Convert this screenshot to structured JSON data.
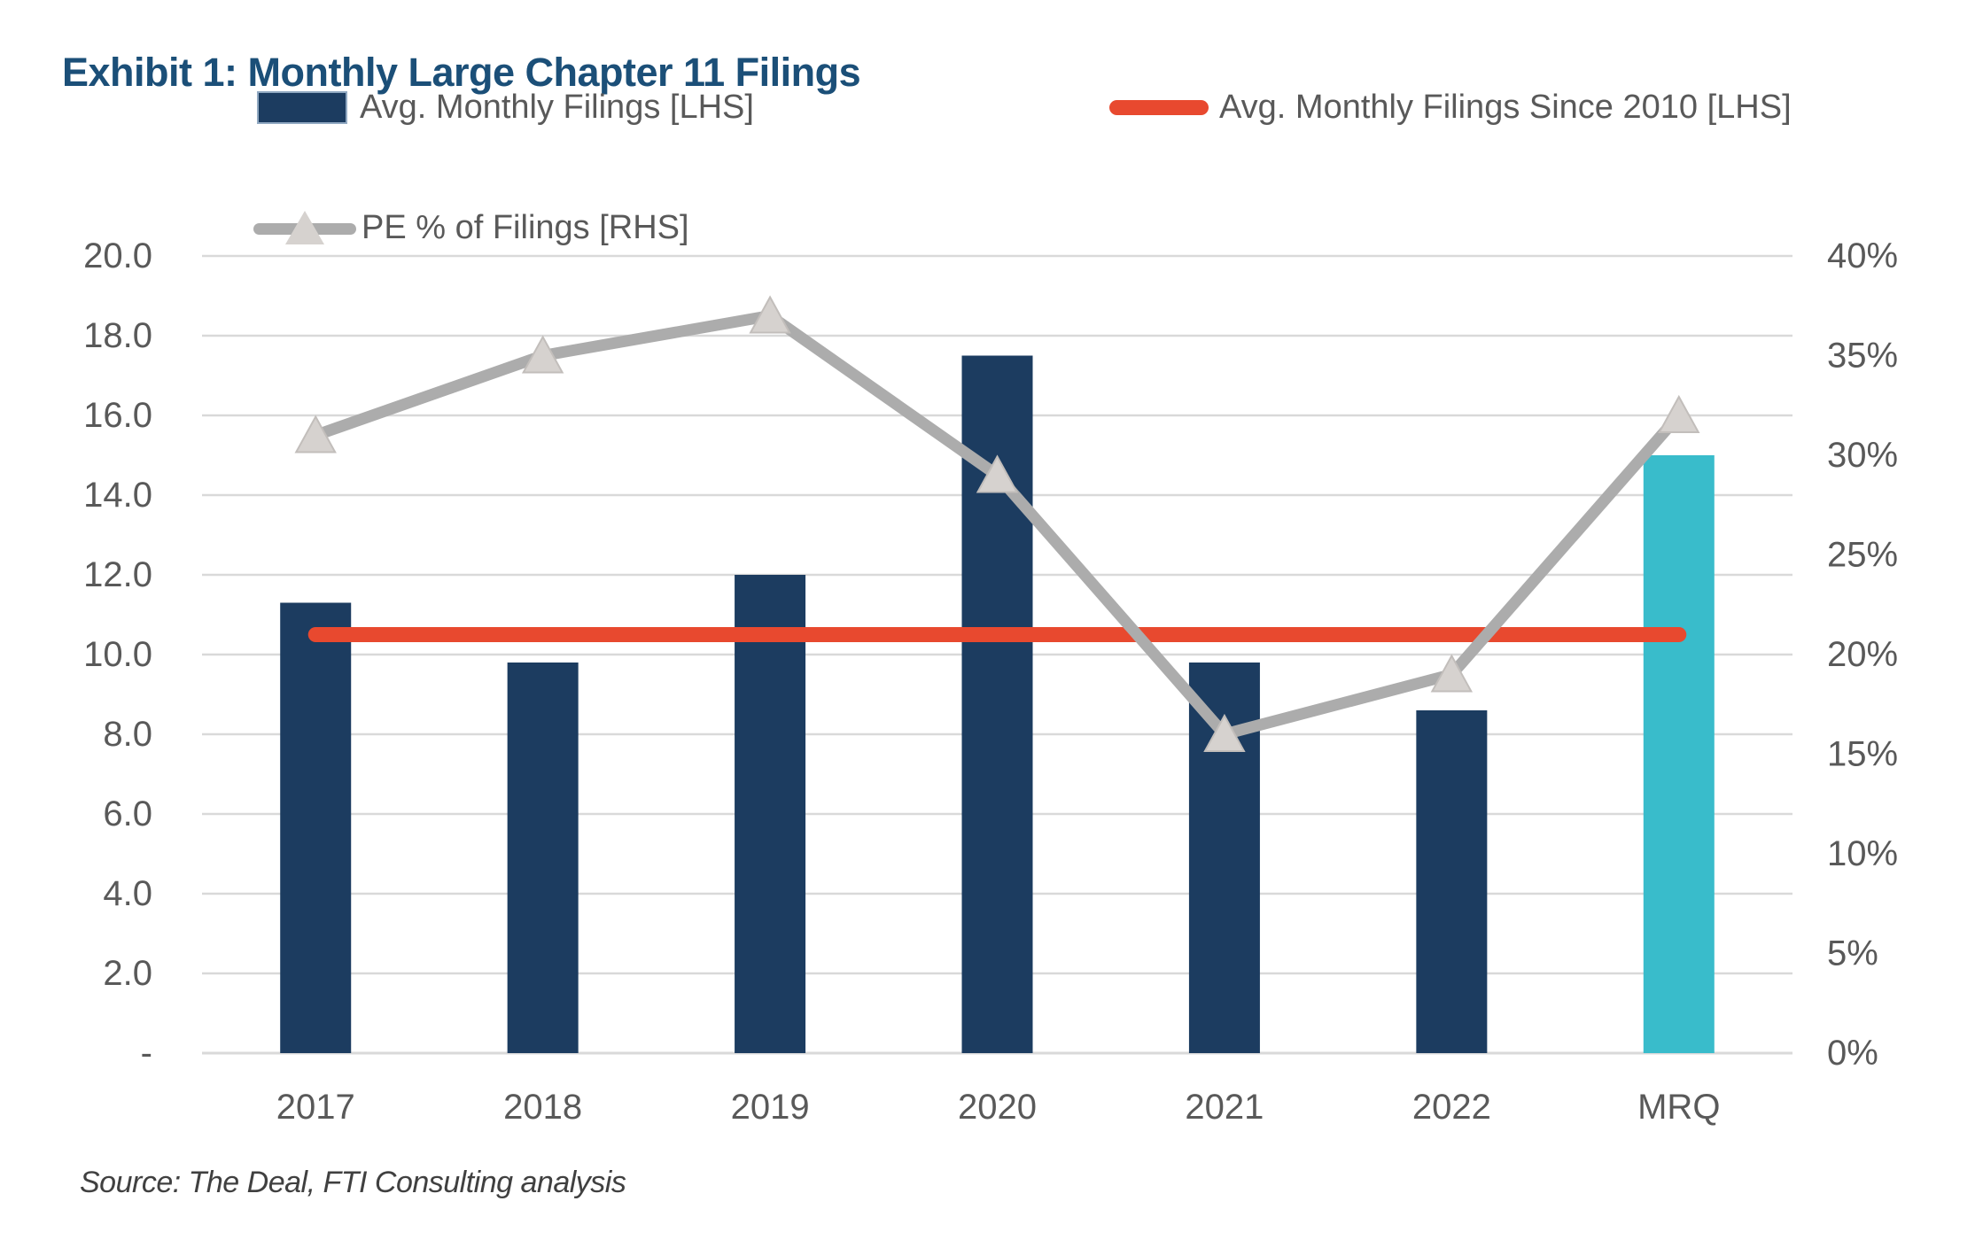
{
  "title": "Exhibit 1: Monthly Large Chapter 11 Filings",
  "source": "Source: The Deal, FTI Consulting analysis",
  "legend": {
    "bar_label": "Avg. Monthly Filings [LHS]",
    "avg_label": "Avg. Monthly Filings Since 2010 [LHS]",
    "pe_label": "PE % of Filings [RHS]"
  },
  "colors": {
    "title_blue": "#1B4F78",
    "bar_navy": "#1C3C60",
    "bar_teal": "#39BCCB",
    "avg_red": "#E8492F",
    "pe_gray": "#ACACAC",
    "marker_fill": "#D6D2CF",
    "marker_edge": "#C2BEBB",
    "gridline": "#D9D9D9",
    "axis_text": "#595959",
    "source_text": "#404040"
  },
  "chart_data": {
    "type": "combo",
    "categories": [
      "2017",
      "2018",
      "2019",
      "2020",
      "2021",
      "2022",
      "MRQ"
    ],
    "series": [
      {
        "name": "Avg. Monthly Filings [LHS]",
        "type": "bar",
        "axis": "left",
        "values": [
          11.3,
          9.8,
          12.0,
          17.5,
          9.8,
          8.6,
          15.0
        ],
        "bar_color_keys": [
          "bar_navy",
          "bar_navy",
          "bar_navy",
          "bar_navy",
          "bar_navy",
          "bar_navy",
          "bar_teal"
        ]
      },
      {
        "name": "Avg. Monthly Filings Since 2010 [LHS]",
        "type": "flat-line",
        "axis": "left",
        "value": 10.5,
        "color_key": "avg_red"
      },
      {
        "name": "PE % of Filings [RHS]",
        "type": "line",
        "axis": "right",
        "marker": "triangle",
        "values": [
          31,
          35,
          37,
          29,
          16,
          19,
          32
        ],
        "color_key": "pe_gray"
      }
    ],
    "left_axis": {
      "min": 0,
      "max": 20,
      "step": 2,
      "tick_labels": [
        "-",
        "2.0",
        "4.0",
        "6.0",
        "8.0",
        "10.0",
        "12.0",
        "14.0",
        "16.0",
        "18.0",
        "20.0"
      ]
    },
    "right_axis": {
      "min": 0,
      "max": 40,
      "step": 5,
      "tick_labels": [
        "0%",
        "5%",
        "10%",
        "15%",
        "20%",
        "25%",
        "30%",
        "35%",
        "40%"
      ]
    },
    "grid": true,
    "legend_position": "top"
  }
}
